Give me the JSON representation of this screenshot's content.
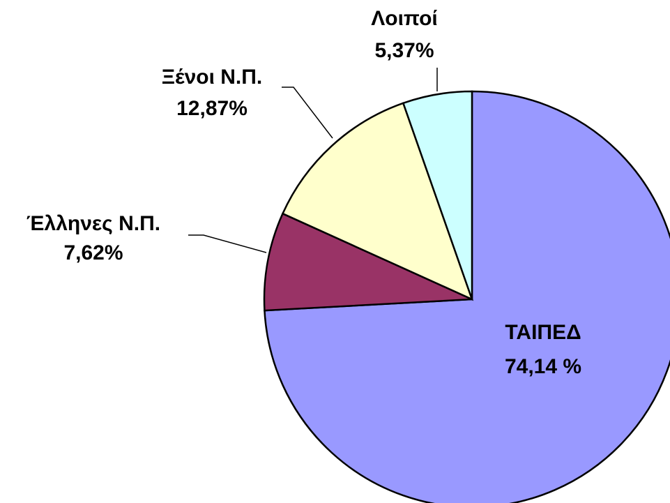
{
  "chart_data": {
    "type": "pie",
    "categories": [
      "ΤΑΙΠΕΔ",
      "Έλληνες Ν.Π.",
      "Ξένοι Ν.Π.",
      "Λοιποί"
    ],
    "values": [
      74.14,
      7.62,
      12.87,
      5.37
    ],
    "value_labels": [
      "74,14 %",
      "7,62%",
      "12,87%",
      "5,37%"
    ],
    "colors": [
      "#9999ff",
      "#993366",
      "#ffffcc",
      "#ccffff"
    ]
  }
}
